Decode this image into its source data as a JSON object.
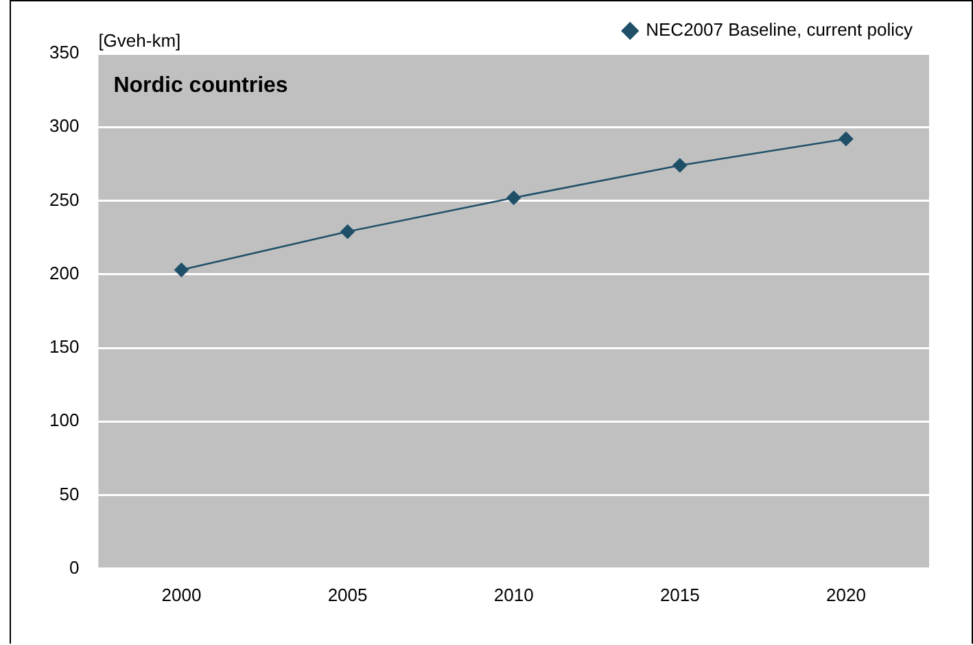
{
  "chart_data": {
    "type": "line",
    "title": "Nordic countries",
    "ylabel": "[Gveh-km]",
    "categories": [
      "2000",
      "2005",
      "2010",
      "2015",
      "2020"
    ],
    "series": [
      {
        "name": "NEC2007 Baseline, current policy",
        "color": "#1f5068",
        "values": [
          203,
          229,
          252,
          274,
          292
        ]
      }
    ],
    "ylim": [
      0,
      350
    ],
    "yticks": [
      0,
      50,
      100,
      150,
      200,
      250,
      300,
      350
    ],
    "grid": "y",
    "legend": "top right",
    "marker": "diamond",
    "line_style": "solid"
  }
}
